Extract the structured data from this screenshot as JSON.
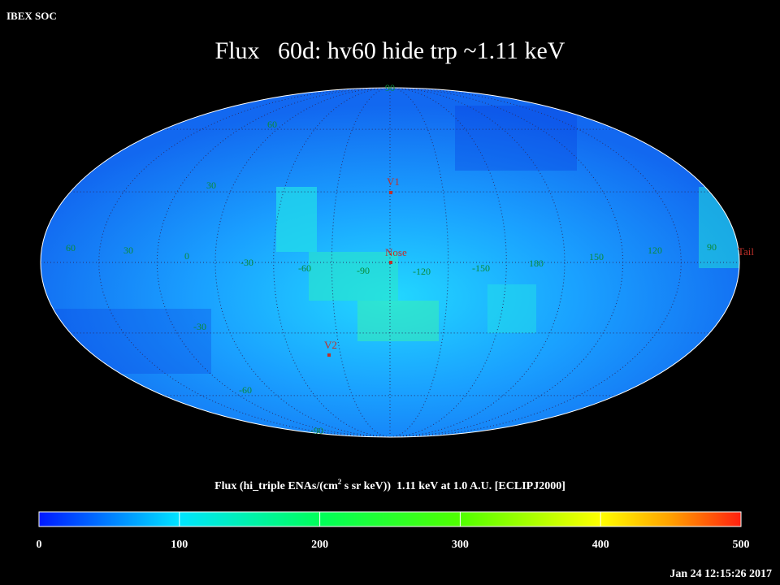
{
  "header": {
    "org": "IBEX SOC",
    "title": "Flux   60d: hv60 hide trp ~1.11 keV"
  },
  "map": {
    "lat_labels": [
      "90",
      "60",
      "30",
      "-30",
      "-60",
      "-90"
    ],
    "lon_labels": [
      "60",
      "30",
      "0",
      "-30",
      "-60",
      "-90",
      "-120",
      "-150",
      "180",
      "150",
      "120",
      "90"
    ],
    "markers": [
      "V1",
      "Nose",
      "V2",
      "Tail"
    ]
  },
  "colorbar": {
    "label_parts": [
      "Flux (hi_triple ENAs/(cm",
      "2",
      " s sr keV))  1.11 keV at 1.0 A.U. [ECLIPJ2000]"
    ],
    "ticks": [
      0,
      100,
      200,
      300,
      400,
      500
    ]
  },
  "footer": {
    "timestamp": "Jan 24 12:15:26 2017"
  }
}
